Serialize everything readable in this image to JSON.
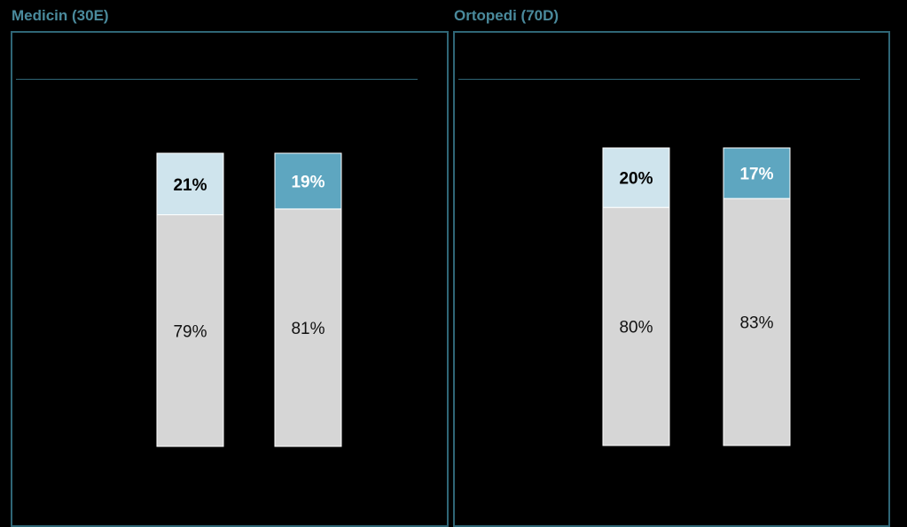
{
  "colors": {
    "background": "#000000",
    "frame": "#2f6676",
    "title": "#4a8a9c",
    "bottom_segment": "#d6d6d6",
    "top_segment_light": "#cfe4ed",
    "top_segment_dark": "#5ea6c0"
  },
  "panels": [
    {
      "title": "Medicin (30E)"
    },
    {
      "title": "Ortopedi (70D)"
    }
  ],
  "chart_data": [
    {
      "type": "bar",
      "stacked": true,
      "title": "Medicin (30E)",
      "categories": [
        "",
        ""
      ],
      "series": [
        {
          "values": [
            79,
            81
          ],
          "labels": [
            "79%",
            "81%"
          ]
        },
        {
          "values": [
            21,
            19
          ],
          "labels": [
            "21%",
            "19%"
          ]
        }
      ],
      "ylim": [
        0,
        100
      ],
      "legend": "none",
      "grid": false
    },
    {
      "type": "bar",
      "stacked": true,
      "title": "Ortopedi (70D)",
      "categories": [
        "",
        ""
      ],
      "series": [
        {
          "values": [
            80,
            83
          ],
          "labels": [
            "80%",
            "83%"
          ]
        },
        {
          "values": [
            20,
            17
          ],
          "labels": [
            "20%",
            "17%"
          ]
        }
      ],
      "ylim": [
        0,
        100
      ],
      "legend": "none",
      "grid": false
    }
  ]
}
